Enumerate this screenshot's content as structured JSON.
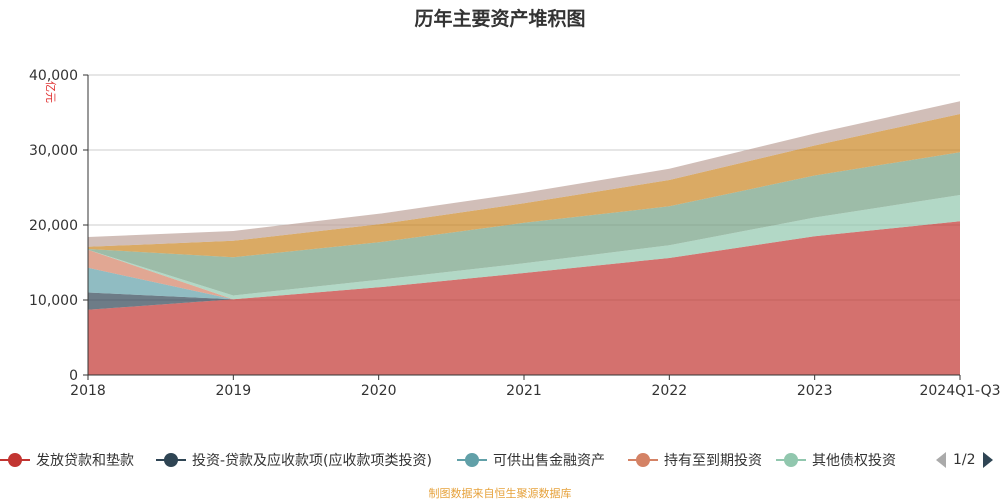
{
  "chart_data": {
    "type": "area",
    "title": "历年主要资产堆积图",
    "unit_label": "亿元",
    "categories": [
      "2018",
      "2019",
      "2020",
      "2021",
      "2022",
      "2023",
      "2024Q1-Q3"
    ],
    "ylim": [
      0,
      40000
    ],
    "yticks": [
      "0",
      "10,000",
      "20,000",
      "30,000",
      "40,000"
    ],
    "series": [
      {
        "name": "发放贷款和垫款",
        "color": "#c23531",
        "values": [
          8700,
          10100,
          11700,
          13600,
          15600,
          18500,
          20500
        ],
        "in_legend": true
      },
      {
        "name": "投资-贷款及应收款项(应收款项类投资)",
        "color": "#2f4554",
        "values": [
          2300,
          0,
          0,
          0,
          0,
          0,
          0
        ],
        "in_legend": true
      },
      {
        "name": "可供出售金融资产",
        "color": "#61a0a8",
        "values": [
          3300,
          0,
          0,
          0,
          0,
          0,
          0
        ],
        "in_legend": true
      },
      {
        "name": "持有至到期投资",
        "color": "#d48265",
        "values": [
          2400,
          0,
          0,
          0,
          0,
          0,
          0
        ],
        "in_legend": true
      },
      {
        "name": "其他债权投资",
        "color": "#91c7ae",
        "values": [
          0,
          500,
          1000,
          1300,
          1700,
          2500,
          3500
        ],
        "in_legend": true
      },
      {
        "name": "",
        "color": "#749f83",
        "values": [
          100,
          5100,
          5000,
          5400,
          5200,
          5600,
          5700
        ],
        "in_legend": false
      },
      {
        "name": "",
        "color": "#ca8622",
        "values": [
          300,
          2200,
          2400,
          2600,
          3500,
          4000,
          5100
        ],
        "in_legend": false
      },
      {
        "name": "",
        "color": "#bda29a",
        "values": [
          1300,
          1300,
          1400,
          1400,
          1500,
          1600,
          1700
        ],
        "in_legend": false
      }
    ],
    "grid": "horizontal",
    "legend_position": "bottom"
  },
  "legend": {
    "page_text": "1/2"
  },
  "source_text": "制图数据来自恒生聚源数据库"
}
